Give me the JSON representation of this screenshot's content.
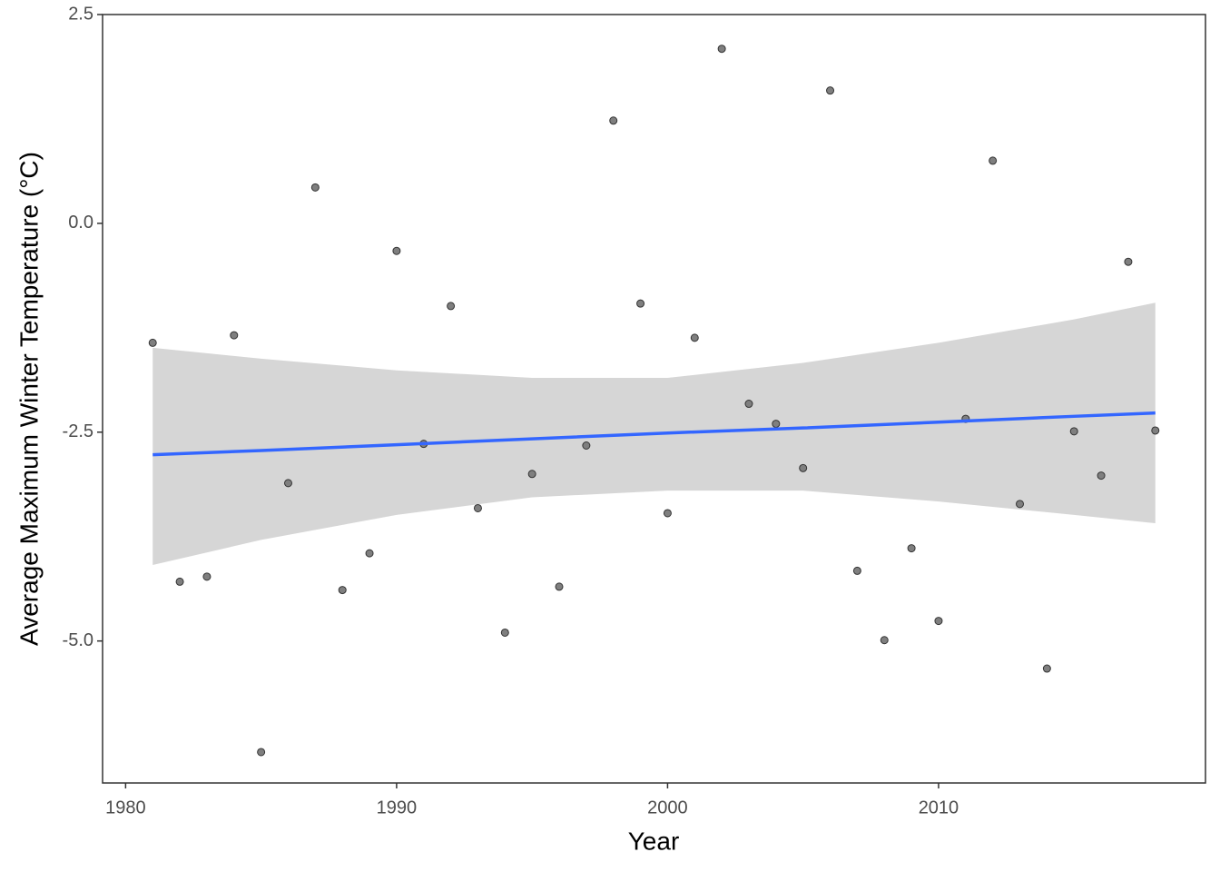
{
  "chart_data": {
    "type": "scatter",
    "x_label": "Year",
    "y_label": "Average Maximum Winter Temperature (°C)",
    "xlim": [
      1979.15,
      2019.85
    ],
    "ylim": [
      -6.7,
      2.5
    ],
    "xticks": [
      1980,
      1990,
      2000,
      2010
    ],
    "yticks": [
      2.5,
      {
        "value": 0,
        "label": "0.0"
      },
      -2.5,
      {
        "value": -5,
        "label": "-5.0"
      }
    ],
    "grid": false,
    "x": [
      1981,
      1982,
      1983,
      1984,
      1985,
      1986,
      1987,
      1988,
      1989,
      1990,
      1991,
      1992,
      1993,
      1994,
      1995,
      1996,
      1997,
      1998,
      1999,
      2000,
      2001,
      2002,
      2003,
      2004,
      2005,
      2006,
      2007,
      2008,
      2009,
      2010,
      2011,
      2012,
      2013,
      2014,
      2015,
      2016,
      2017,
      2018
    ],
    "values": [
      -1.43,
      -4.29,
      -4.23,
      -1.34,
      -6.33,
      -3.11,
      0.43,
      -4.39,
      -3.95,
      -0.33,
      -2.64,
      -0.99,
      -3.41,
      -4.9,
      -3.0,
      -4.35,
      -2.66,
      1.23,
      -0.96,
      -3.47,
      -1.37,
      2.09,
      -2.16,
      -2.4,
      -2.93,
      1.59,
      -4.16,
      -4.99,
      -3.89,
      -4.76,
      -2.34,
      0.75,
      -3.36,
      -5.33,
      -2.49,
      -3.02,
      -0.46,
      -2.48
    ],
    "color": "#7f7f7f",
    "trend": {
      "x": [
        1981,
        1985,
        1990,
        1995,
        2000,
        2005,
        2010,
        2015,
        2018
      ],
      "values": [
        -2.77,
        -2.72,
        -2.65,
        -2.58,
        -2.51,
        -2.45,
        -2.38,
        -2.31,
        -2.27
      ],
      "lower": [
        -4.09,
        -3.79,
        -3.49,
        -3.28,
        -3.2,
        -3.2,
        -3.33,
        -3.49,
        -3.59
      ],
      "upper": [
        -1.49,
        -1.62,
        -1.76,
        -1.85,
        -1.85,
        -1.67,
        -1.43,
        -1.15,
        -0.95
      ],
      "color": "#3366ff",
      "band_color": "#d6d6d6"
    }
  }
}
